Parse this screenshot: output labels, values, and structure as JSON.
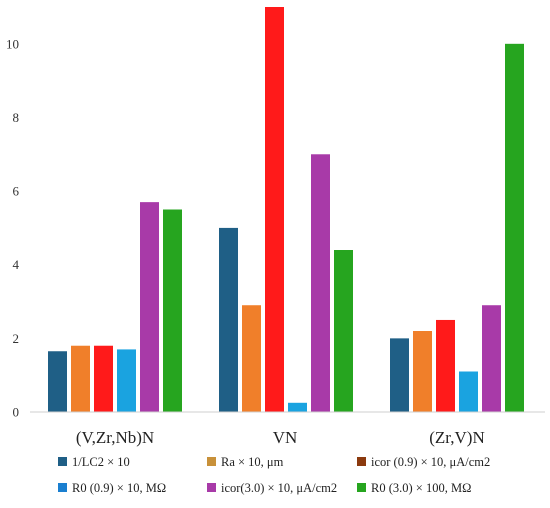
{
  "chart_data": {
    "type": "bar",
    "categories": [
      "(V,Zr,Nb)N",
      "VN",
      "(Zr,V)N"
    ],
    "ylim": [
      0,
      11
    ],
    "yticks": [
      0,
      2,
      4,
      6,
      8,
      10
    ],
    "grid": false,
    "legend_position": "bottom",
    "series": [
      {
        "name": "1/LC2 × 10",
        "color": "#1f5f86",
        "values": [
          1.65,
          5.0,
          2.0
        ]
      },
      {
        "name": "Ra × 10, μm",
        "color": "#f07f2a",
        "values": [
          1.8,
          2.9,
          2.2
        ]
      },
      {
        "name": "icor (0.9) × 10, μA/cm2",
        "color": "#ff1a1a",
        "values": [
          1.8,
          11.0,
          2.5
        ]
      },
      {
        "name": "R0 (0.9) × 10, MΩ",
        "color": "#1aa3e0",
        "values": [
          1.7,
          0.25,
          1.1
        ]
      },
      {
        "name": "icor(3.0) × 10, μA/cm2",
        "color": "#a83aa8",
        "values": [
          5.7,
          7.0,
          2.9
        ]
      },
      {
        "name": "R0 (3.0) × 100, MΩ",
        "color": "#26a51f",
        "values": [
          5.5,
          4.4,
          10.0
        ]
      }
    ],
    "legend_marker_colors": [
      "#1f5f86",
      "#c8913a",
      "#8b3a0e",
      "#1a7fd0",
      "#a83aa8",
      "#26a51f"
    ]
  }
}
